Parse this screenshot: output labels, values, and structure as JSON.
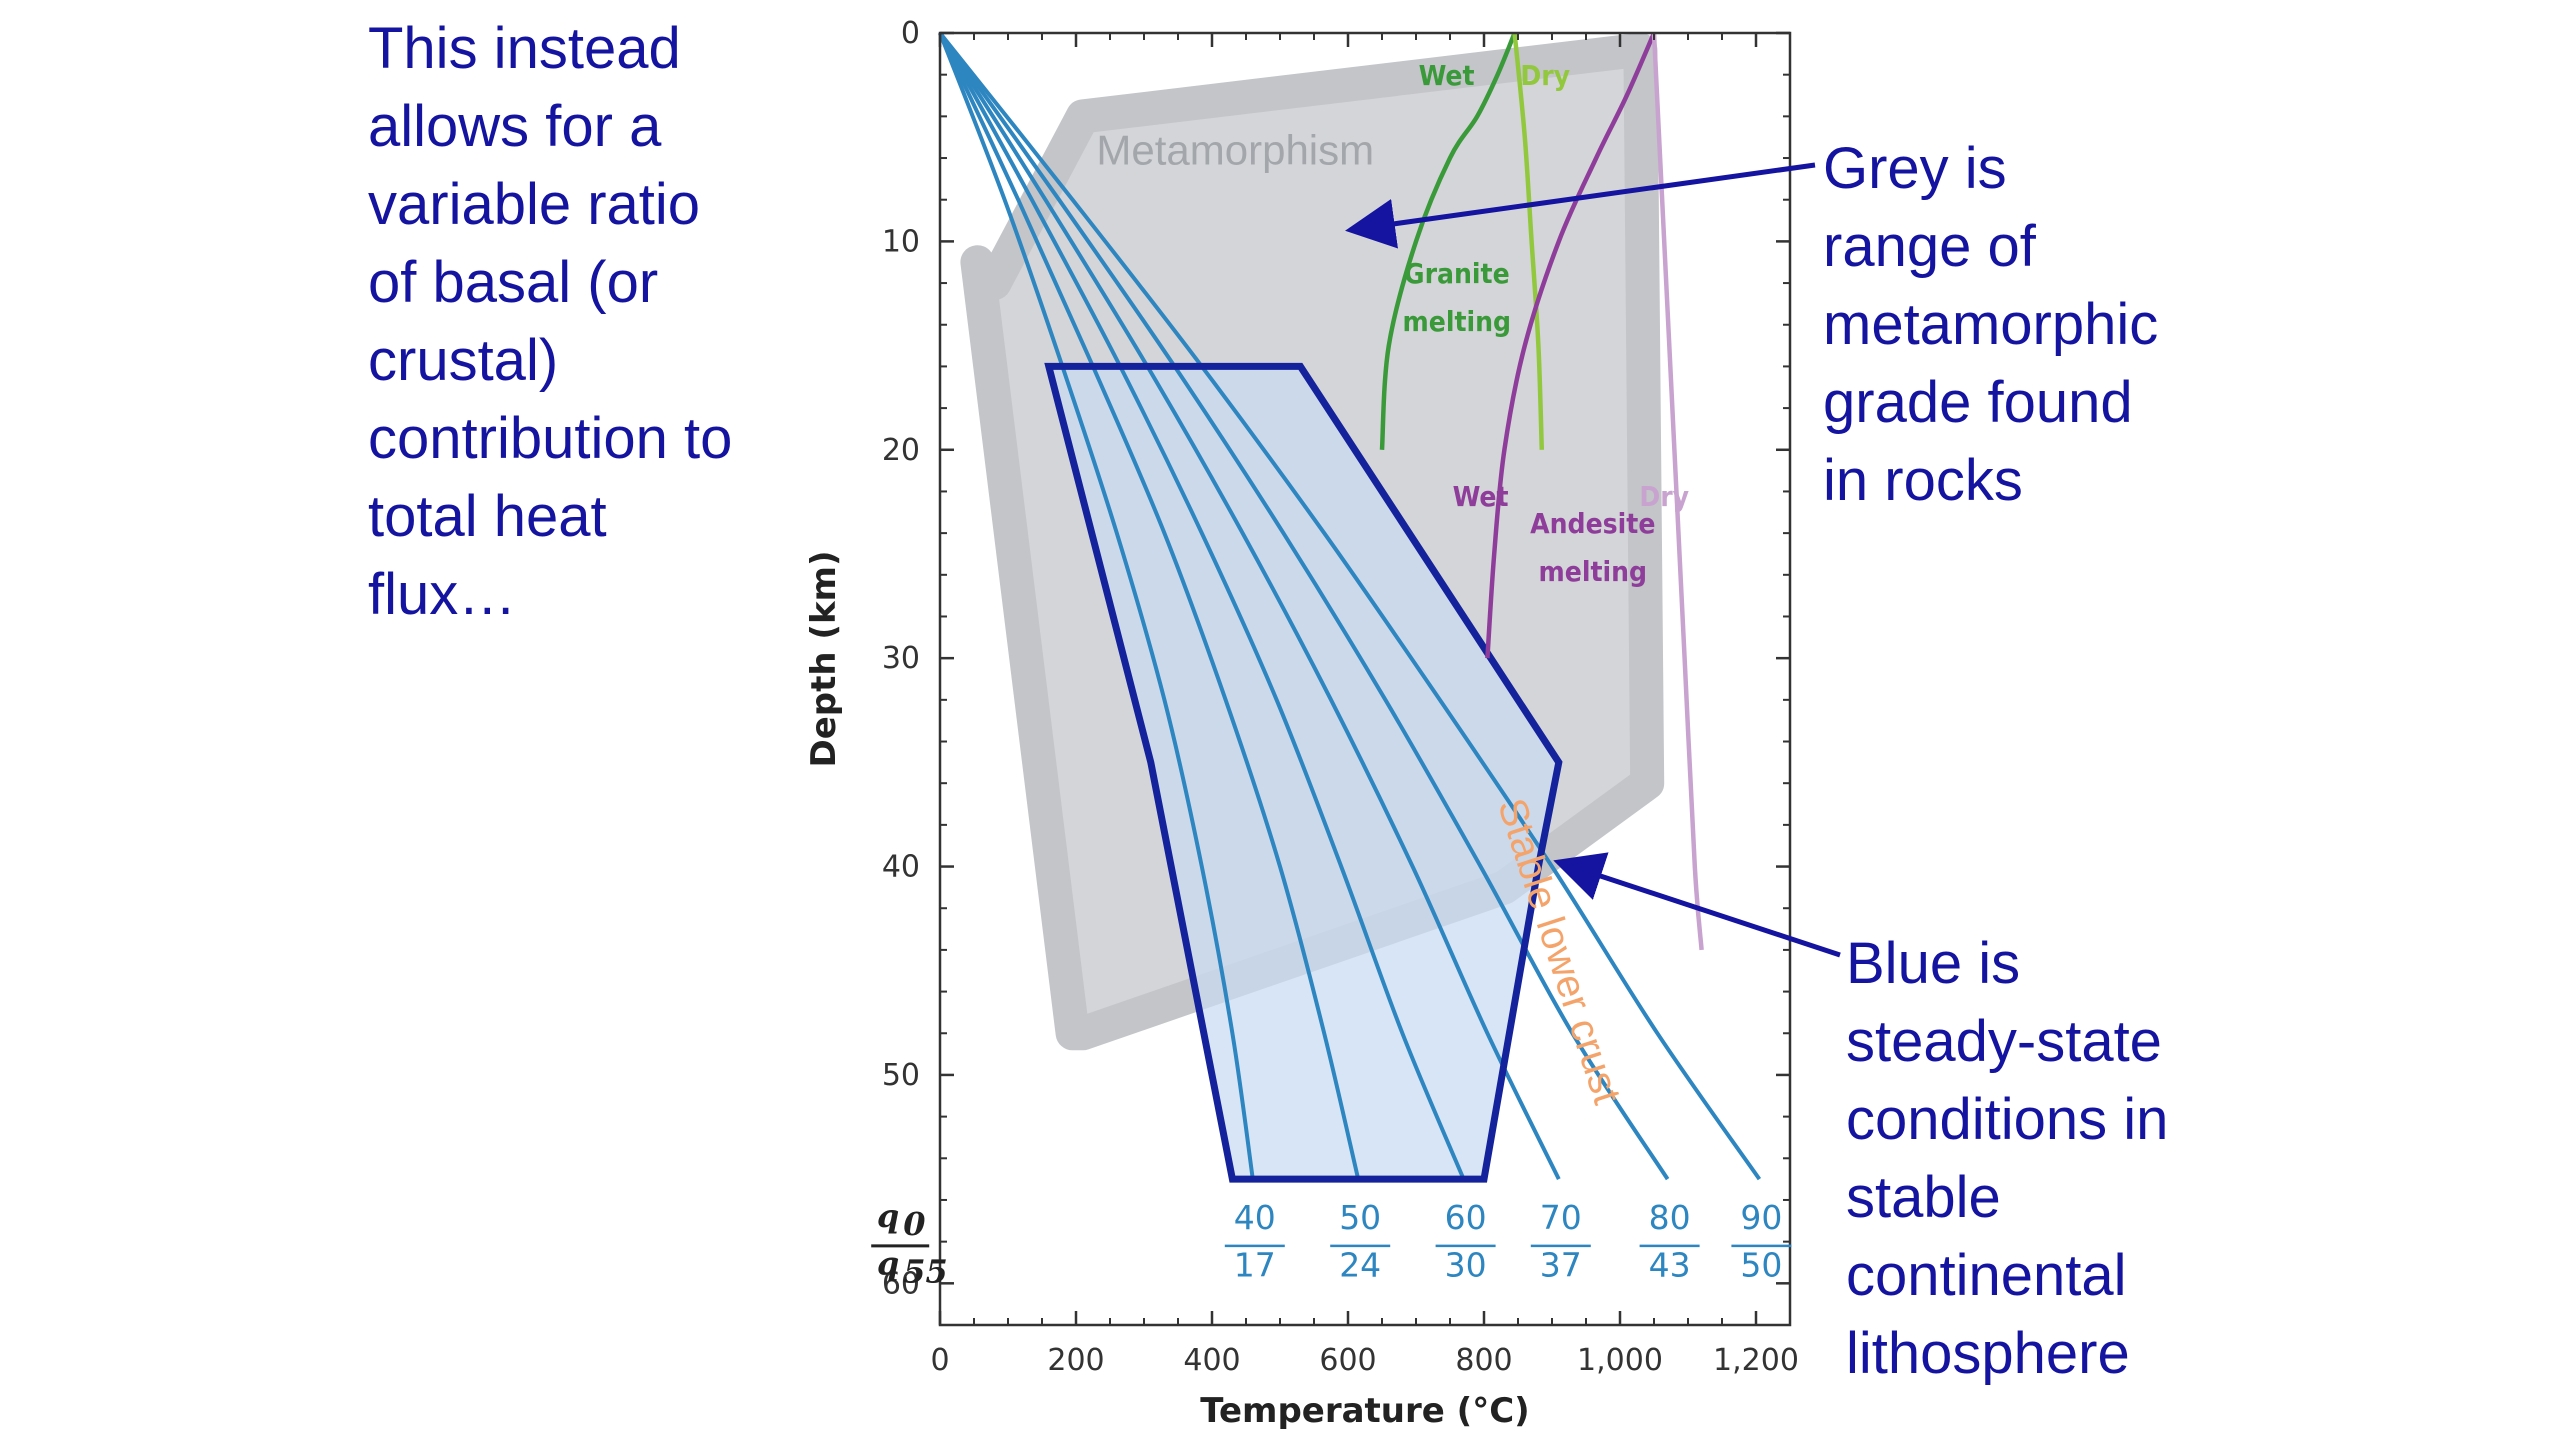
{
  "notes": {
    "left": "This instead\nallows for a\nvariable ratio\nof basal (or\ncrustal)\ncontribution to\ntotal heat\nflux…",
    "grey": "Grey is\nrange of\nmetamorphic\ngrade found\nin rocks",
    "blue": "Blue is\nsteady-state\nconditions in\nstable\ncontinental\nlithosphere"
  },
  "colors": {
    "geotherm": "#2e86c1",
    "blue_region_fill": "#c9dbf2",
    "blue_region_edge": "#14239b",
    "grey_region": "#c3c5c9",
    "granite": "#3a9a3a",
    "granite_dry": "#92c83e",
    "andesite": "#8e3e9a",
    "andesite_dry": "#c9a3cf",
    "stable_lower_crust": "#f4a46a",
    "annotation": "#1414a0"
  },
  "chart_data": {
    "type": "line",
    "xlabel": "Temperature (°C)",
    "ylabel": "Depth (km)",
    "xlim": [
      0,
      1250
    ],
    "ylim": [
      0,
      62
    ],
    "y_inverted": true,
    "x_ticks": [
      0,
      200,
      400,
      600,
      800,
      1000,
      1200
    ],
    "x_tick_labels": [
      "0",
      "200",
      "400",
      "600",
      "800",
      "1,000",
      "1,200"
    ],
    "y_ticks": [
      0,
      10,
      20,
      30,
      40,
      50,
      60
    ],
    "y_tick_labels": [
      "0",
      "10",
      "20",
      "30",
      "40",
      "50",
      "60"
    ],
    "grid": false,
    "flux_ratio_header": {
      "numerator": "q",
      "numerator_sub": "0",
      "denominator": "q",
      "denominator_sub": "55"
    },
    "series": [
      {
        "top": "40",
        "bottom": "17",
        "x": [
          0,
          95,
          180,
          260,
          330,
          385,
          430,
          460
        ],
        "y": [
          0,
          8,
          16,
          24,
          32,
          40,
          48,
          55
        ]
      },
      {
        "top": "50",
        "bottom": "24",
        "x": [
          0,
          115,
          225,
          330,
          420,
          500,
          565,
          615
        ],
        "y": [
          0,
          8,
          16,
          24,
          32,
          40,
          48,
          55
        ]
      },
      {
        "top": "60",
        "bottom": "30",
        "x": [
          0,
          135,
          265,
          385,
          495,
          590,
          680,
          770
        ],
        "y": [
          0,
          8,
          16,
          24,
          32,
          40,
          48,
          55
        ]
      },
      {
        "top": "70",
        "bottom": "37",
        "x": [
          0,
          155,
          305,
          445,
          575,
          695,
          805,
          910
        ],
        "y": [
          0,
          8,
          16,
          24,
          32,
          40,
          48,
          55
        ]
      },
      {
        "top": "80",
        "bottom": "43",
        "x": [
          0,
          175,
          345,
          505,
          655,
          795,
          930,
          1070
        ],
        "y": [
          0,
          8,
          16,
          24,
          32,
          40,
          48,
          55
        ]
      },
      {
        "top": "90",
        "bottom": "50",
        "x": [
          0,
          195,
          385,
          565,
          735,
          900,
          1055,
          1205
        ],
        "y": [
          0,
          8,
          16,
          24,
          32,
          40,
          48,
          55
        ]
      }
    ],
    "melting_curves": [
      {
        "label": "Wet",
        "group": "Granite melting",
        "x": [
          845,
          820,
          790,
          750,
          700,
          660,
          650
        ],
        "y": [
          0,
          2,
          4,
          6,
          10,
          15,
          20
        ]
      },
      {
        "label": "Dry",
        "group": "Granite melting",
        "x": [
          845,
          860,
          870,
          880,
          885
        ],
        "y": [
          0,
          5,
          10,
          15,
          20
        ]
      },
      {
        "label": "Wet",
        "group": "Andesite melting",
        "x": [
          1050,
          1010,
          965,
          910,
          860,
          830,
          815,
          805
        ],
        "y": [
          0,
          3,
          6,
          10,
          15,
          20,
          25,
          30
        ]
      },
      {
        "label": "Dry",
        "group": "Andesite melting",
        "x": [
          1050,
          1065,
          1080,
          1095,
          1110,
          1120
        ],
        "y": [
          0,
          10,
          20,
          30,
          40,
          44
        ]
      }
    ],
    "grey_region": {
      "label": "Metamorphism",
      "x": [
        80,
        210,
        1030,
        1040,
        830,
        210,
        195,
        55
      ],
      "y": [
        12,
        4,
        0.8,
        36,
        41,
        48,
        48,
        11
      ]
    },
    "blue_region": {
      "x": [
        160,
        530,
        910,
        880,
        800,
        430,
        310
      ],
      "y": [
        16,
        16,
        35,
        40,
        55,
        55,
        35
      ]
    },
    "annotations": [
      {
        "text": "Granite\nmelting",
        "x": 760,
        "y": 12
      },
      {
        "text": "Andesite\nmelting",
        "x": 960,
        "y": 24
      },
      {
        "text": "Stable lower crust",
        "x": 820,
        "y": 37
      }
    ]
  }
}
